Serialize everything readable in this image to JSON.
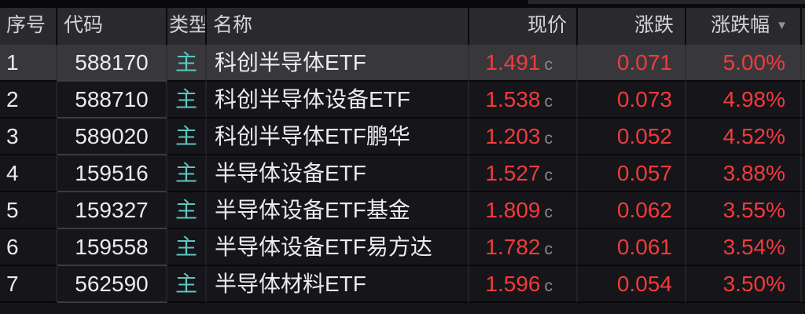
{
  "table": {
    "columns": [
      {
        "key": "index",
        "label": "序号"
      },
      {
        "key": "code",
        "label": "代码"
      },
      {
        "key": "type",
        "label": "类型"
      },
      {
        "key": "name",
        "label": "名称"
      },
      {
        "key": "price",
        "label": "现价"
      },
      {
        "key": "change",
        "label": "涨跌"
      },
      {
        "key": "pct",
        "label": "涨跌幅"
      }
    ],
    "sort_column": "涨跌幅",
    "sort_indicator": "▼",
    "selected_row_index": 0,
    "rows": [
      {
        "index": "1",
        "code": "588170",
        "type": "主",
        "name": "科创半导体ETF",
        "price": "1.491",
        "flag": "c",
        "change": "0.071",
        "pct": "5.00%"
      },
      {
        "index": "2",
        "code": "588710",
        "type": "主",
        "name": "科创半导体设备ETF",
        "price": "1.538",
        "flag": "c",
        "change": "0.073",
        "pct": "4.98%"
      },
      {
        "index": "3",
        "code": "589020",
        "type": "主",
        "name": "科创半导体ETF鹏华",
        "price": "1.203",
        "flag": "c",
        "change": "0.052",
        "pct": "4.52%"
      },
      {
        "index": "4",
        "code": "159516",
        "type": "主",
        "name": "半导体设备ETF",
        "price": "1.527",
        "flag": "c",
        "change": "0.057",
        "pct": "3.88%"
      },
      {
        "index": "5",
        "code": "159327",
        "type": "主",
        "name": "半导体设备ETF基金",
        "price": "1.809",
        "flag": "c",
        "change": "0.062",
        "pct": "3.55%"
      },
      {
        "index": "6",
        "code": "159558",
        "type": "主",
        "name": "半导体设备ETF易方达",
        "price": "1.782",
        "flag": "c",
        "change": "0.061",
        "pct": "3.54%"
      },
      {
        "index": "7",
        "code": "562590",
        "type": "主",
        "name": "半导体材料ETF",
        "price": "1.596",
        "flag": "c",
        "change": "0.054",
        "pct": "3.50%"
      }
    ]
  },
  "colors": {
    "up_red": "#f23b3b",
    "type_teal": "#5fc6bf",
    "flag_gray": "#8a8a8e",
    "header_bg": "#2a2a2e",
    "row_bg": "#15151a",
    "row_selected_bg": "#38383c"
  }
}
